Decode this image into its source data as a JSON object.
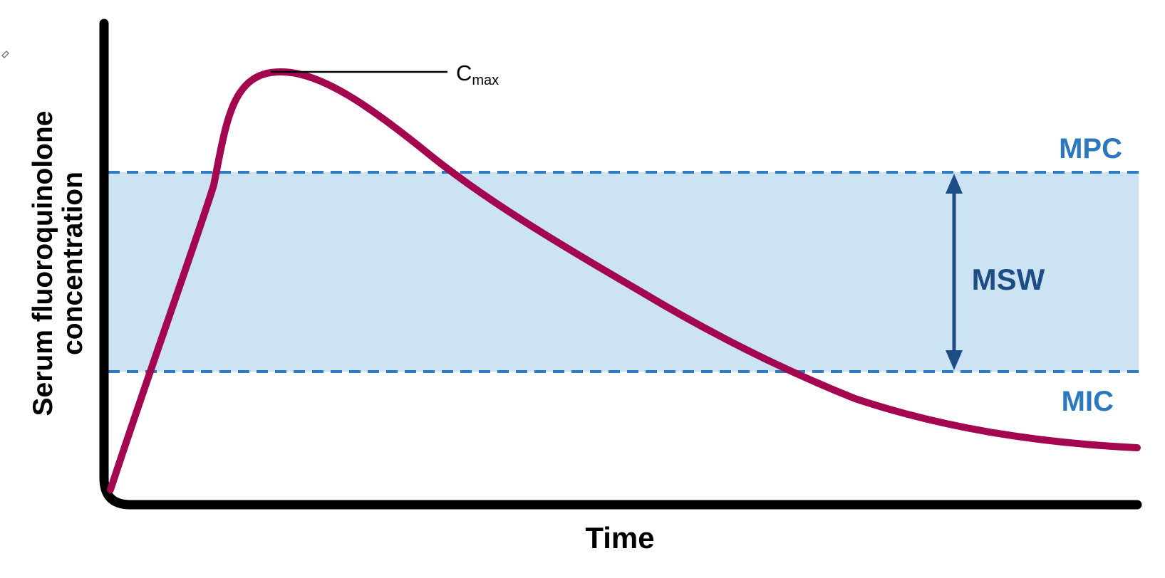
{
  "axes": {
    "y_label_line1": "Serum fluoroquinolone",
    "y_label_line2": "concentration",
    "x_label": "Time"
  },
  "labels": {
    "cmax_main": "C",
    "cmax_sub": "max",
    "mpc": "MPC",
    "mic": "MIC",
    "msw": "MSW"
  },
  "colors": {
    "curve": "#a3074f",
    "band_fill": "#cce3f4",
    "threshold_line": "#2e7bc0",
    "threshold_label": "#2b78bf",
    "msw": "#1e4d86",
    "axis": "#000000"
  },
  "icons": {
    "corner_mark": "paperclip-icon"
  }
}
